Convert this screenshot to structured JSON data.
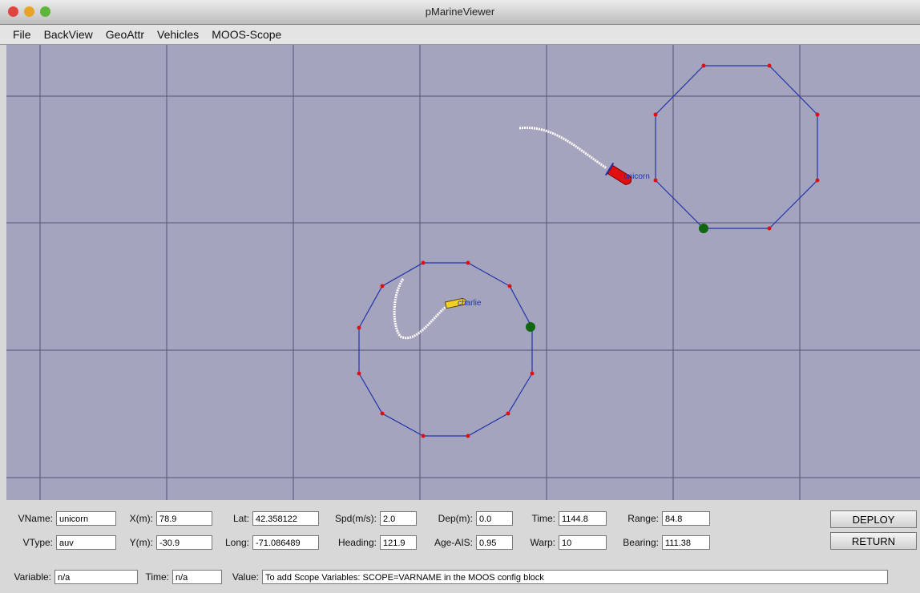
{
  "window": {
    "title": "pMarineViewer"
  },
  "menu": [
    "File",
    "BackView",
    "GeoAttr",
    "Vehicles",
    "MOOS-Scope"
  ],
  "vehicles": [
    {
      "name": "unicorn"
    },
    {
      "name": "charlie"
    }
  ],
  "panel": {
    "row1": [
      {
        "label": "VName:",
        "value": "unicorn"
      },
      {
        "label": "X(m):",
        "value": "78.9"
      },
      {
        "label": "Lat:",
        "value": "42.358122"
      },
      {
        "label": "Spd(m/s):",
        "value": "2.0"
      },
      {
        "label": "Dep(m):",
        "value": "0.0"
      },
      {
        "label": "Time:",
        "value": "1144.8"
      },
      {
        "label": "Range:",
        "value": "84.8"
      }
    ],
    "row2": [
      {
        "label": "VType:",
        "value": "auv"
      },
      {
        "label": "Y(m):",
        "value": "-30.9"
      },
      {
        "label": "Long:",
        "value": "-71.086489"
      },
      {
        "label": "Heading:",
        "value": "121.9"
      },
      {
        "label": "Age-AIS:",
        "value": "0.95"
      },
      {
        "label": "Warp:",
        "value": "10"
      },
      {
        "label": "Bearing:",
        "value": "111.38"
      }
    ],
    "row3": [
      {
        "label": "Variable:",
        "value": "n/a"
      },
      {
        "label": "Time:",
        "value": "n/a"
      },
      {
        "label": "Value:",
        "value": "To add Scope Variables: SCOPE=VARNAME in the MOOS config block"
      }
    ],
    "buttons": [
      "DEPLOY",
      "RETURN"
    ]
  }
}
